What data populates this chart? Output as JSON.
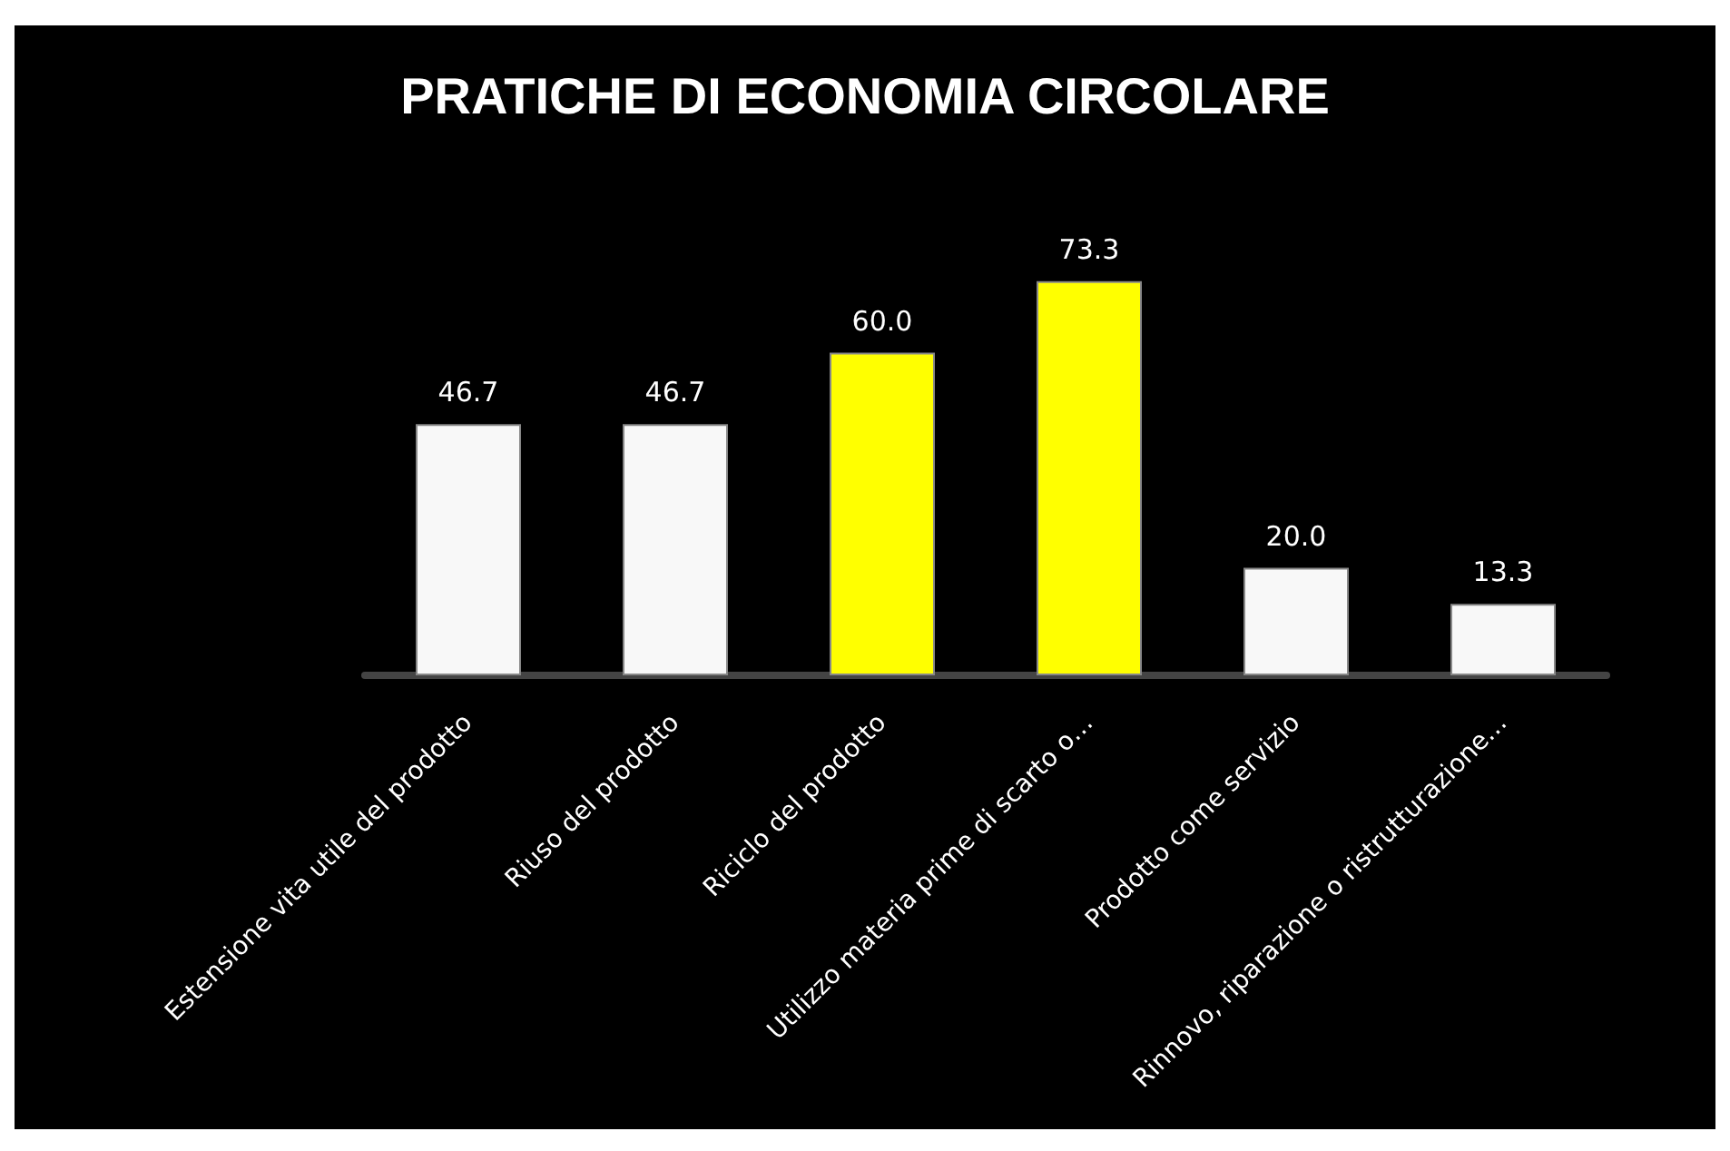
{
  "chart_data": {
    "type": "bar",
    "title": "PRATICHE DI ECONOMIA CIRCOLARE",
    "categories": [
      "Estensione vita utile del prodotto",
      "Riuso del prodotto",
      "Riciclo del prodotto",
      "Utilizzo materia prime di scarto o…",
      "Prodotto come servizio",
      "Rinnovo, riparazione o ristrutturazione…"
    ],
    "values": [
      46.7,
      46.7,
      60.0,
      73.3,
      20.0,
      13.3
    ],
    "colors": [
      "#f8f8f8",
      "#f8f8f8",
      "#ffff00",
      "#ffff00",
      "#f8f8f8",
      "#f8f8f8"
    ],
    "value_labels": [
      "46.7",
      "46.7",
      "60.0",
      "73.3",
      "20.0",
      "13.3"
    ],
    "tick_labels": "x"
  }
}
